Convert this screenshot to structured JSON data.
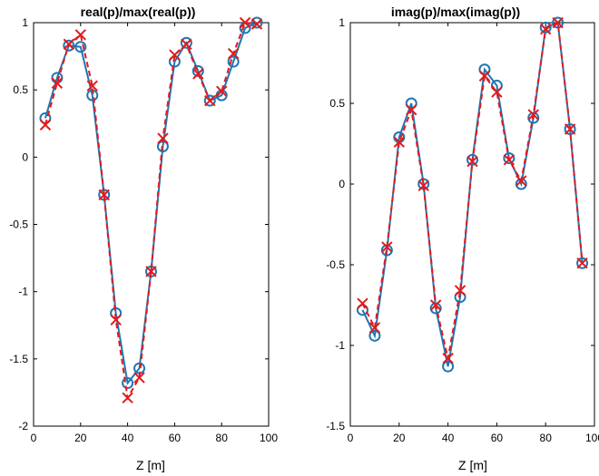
{
  "colors": {
    "series1": "#1f77b4",
    "series2": "#e41a1c"
  },
  "chart_data": [
    {
      "type": "line",
      "title": "real(p)/max(real(p))",
      "xlabel": "Z [m]",
      "ylabel": "",
      "xlim": [
        0,
        100
      ],
      "ylim": [
        -2,
        1
      ],
      "xticks": [
        0,
        20,
        40,
        60,
        80,
        100
      ],
      "yticks": [
        -2,
        -1.5,
        -1,
        -0.5,
        0,
        0.5,
        1
      ],
      "ytick_labels": [
        "-2",
        "-1.5",
        "-1",
        "-0.5",
        "0",
        "0.5",
        "1"
      ],
      "grid": false,
      "series": [
        {
          "marker": "circle",
          "line": "solid",
          "x": [
            5,
            10,
            15,
            20,
            25,
            30,
            35,
            40,
            45,
            50,
            55,
            60,
            65,
            70,
            75,
            80,
            85,
            90,
            95
          ],
          "values": [
            0.29,
            0.59,
            0.83,
            0.82,
            0.46,
            -0.28,
            -1.16,
            -1.68,
            -1.57,
            -0.85,
            0.08,
            0.71,
            0.85,
            0.64,
            0.42,
            0.46,
            0.71,
            0.96,
            1.0
          ]
        },
        {
          "marker": "x",
          "line": "dashed",
          "x": [
            5,
            10,
            15,
            20,
            25,
            30,
            35,
            40,
            45,
            50,
            55,
            60,
            65,
            70,
            75,
            80,
            85,
            90,
            95
          ],
          "values": [
            0.24,
            0.55,
            0.84,
            0.91,
            0.53,
            -0.28,
            -1.21,
            -1.79,
            -1.64,
            -0.85,
            0.14,
            0.76,
            0.84,
            0.62,
            0.42,
            0.49,
            0.77,
            1.0,
            0.99
          ]
        }
      ]
    },
    {
      "type": "line",
      "title": "imag(p)/max(imag(p))",
      "xlabel": "Z [m]",
      "ylabel": "",
      "xlim": [
        0,
        100
      ],
      "ylim": [
        -1.5,
        1
      ],
      "xticks": [
        0,
        20,
        40,
        60,
        80,
        100
      ],
      "yticks": [
        -1.5,
        -1,
        -0.5,
        0,
        0.5,
        1
      ],
      "ytick_labels": [
        "-1.5",
        "-1",
        "-0.5",
        "0",
        "0.5",
        "1"
      ],
      "grid": false,
      "series": [
        {
          "marker": "circle",
          "line": "solid",
          "x": [
            5,
            10,
            15,
            20,
            25,
            30,
            35,
            40,
            45,
            50,
            55,
            60,
            65,
            70,
            75,
            80,
            85,
            90,
            95
          ],
          "values": [
            -0.78,
            -0.94,
            -0.41,
            0.29,
            0.5,
            0.0,
            -0.77,
            -1.13,
            -0.7,
            0.15,
            0.71,
            0.61,
            0.16,
            0.0,
            0.41,
            0.97,
            1.0,
            0.34,
            -0.49
          ]
        },
        {
          "marker": "x",
          "line": "dashed",
          "x": [
            5,
            10,
            15,
            20,
            25,
            30,
            35,
            40,
            45,
            50,
            55,
            60,
            65,
            70,
            75,
            80,
            85,
            90,
            95
          ],
          "values": [
            -0.74,
            -0.89,
            -0.39,
            0.26,
            0.46,
            -0.01,
            -0.75,
            -1.08,
            -0.66,
            0.14,
            0.67,
            0.57,
            0.15,
            0.02,
            0.43,
            0.96,
            1.0,
            0.34,
            -0.49
          ]
        }
      ]
    }
  ]
}
